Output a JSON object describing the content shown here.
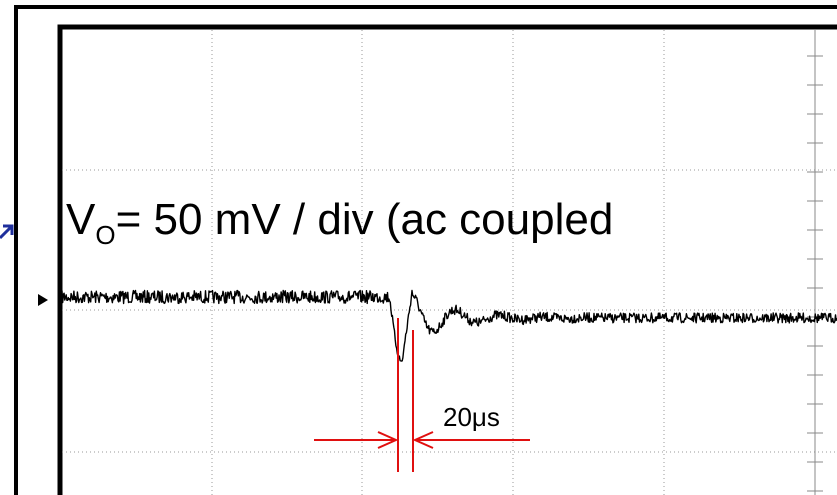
{
  "label": {
    "symbol": "V",
    "subscript": "O",
    "text": "= 50 mV / div (ac coupled"
  },
  "annotation": "20μs"
}
